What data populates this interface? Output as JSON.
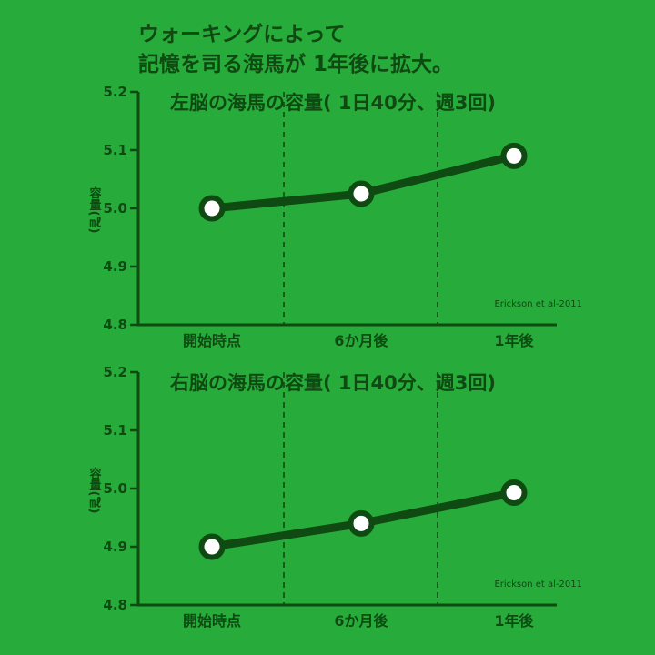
{
  "headline": {
    "line1": "ウォーキングによって",
    "line2": "記憶を司る海馬が 1年後に拡大。"
  },
  "colors": {
    "background": "#27ab3a",
    "foreground": "#0e4a12",
    "marker_fill": "#ffffff"
  },
  "chart_data": [
    {
      "type": "line",
      "title": "左脳の海馬の容量( 1日40分、週3回)",
      "ylabel": "容量(㎖)",
      "xlabel": "",
      "categories": [
        "開始時点",
        "6か月後",
        "1年後"
      ],
      "series": [
        {
          "values": [
            5.0,
            5.025,
            5.09
          ]
        }
      ],
      "ylim": [
        4.8,
        5.2
      ],
      "yticks": [
        "4.8",
        "4.9",
        "5.0",
        "5.1",
        "5.2"
      ],
      "grid": "vertical dashed separators",
      "source": "Erickson et al-2011"
    },
    {
      "type": "line",
      "title": "右脳の海馬の容量( 1日40分、週3回)",
      "ylabel": "容量(㎖)",
      "xlabel": "",
      "categories": [
        "開始時点",
        "6か月後",
        "1年後"
      ],
      "series": [
        {
          "values": [
            4.9,
            4.94,
            4.993
          ]
        }
      ],
      "ylim": [
        4.8,
        5.2
      ],
      "yticks": [
        "4.8",
        "4.9",
        "5.0",
        "5.1",
        "5.2"
      ],
      "grid": "vertical dashed separators",
      "source": "Erickson et al-2011"
    }
  ]
}
